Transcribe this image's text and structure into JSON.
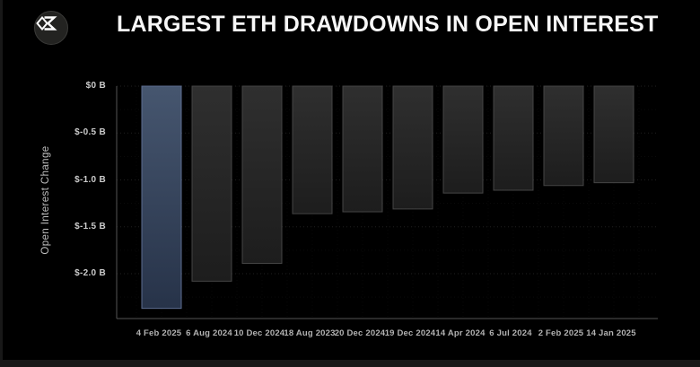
{
  "header": {
    "title": "LARGEST ETH DRAWDOWNS IN OPEN INTEREST",
    "logo_icon": "sigma-diamond-icon"
  },
  "chart_data": {
    "type": "bar",
    "title": "LARGEST ETH DRAWDOWNS IN OPEN INTEREST",
    "categories": [
      "4 Feb 2025",
      "6 Aug 2024",
      "10 Dec 2024",
      "18 Aug 2023",
      "20 Dec 2024",
      "19 Dec 2024",
      "14 Apr 2024",
      "6 Jul 2024",
      "2 Feb 2025",
      "14 Jan 2025"
    ],
    "values": [
      -2.37,
      -2.08,
      -1.89,
      -1.36,
      -1.34,
      -1.31,
      -1.14,
      -1.11,
      -1.06,
      -1.03
    ],
    "unit": "$ Billion",
    "xlabel": "",
    "ylabel": "Open Interest Change",
    "ylim": [
      -2.48,
      0
    ],
    "yticks": [
      0,
      -0.5,
      -1.0,
      -1.5,
      -2.0
    ],
    "ytick_labels": [
      "$0 B",
      "$-0.5 B",
      "$-1.0 B",
      "$-1.5 B",
      "$-2.0 B"
    ],
    "grid": true,
    "legend": false,
    "highlight_index": 0,
    "colors": {
      "background": "#000000",
      "bar_fill_top": "#2f2f2f",
      "bar_fill_bottom": "#1d1d1d",
      "bar_border": "#454545",
      "highlight_fill_top": "#46566f",
      "highlight_fill_bottom": "#273349",
      "highlight_border": "#5d6d90",
      "axis_line": "#555555",
      "grid_major": "rgba(255,255,255,0.12)",
      "grid_minor": "rgba(255,255,255,0.045)",
      "title_text": "#f7f7f7",
      "tick_text": "#cbcbcb"
    }
  }
}
